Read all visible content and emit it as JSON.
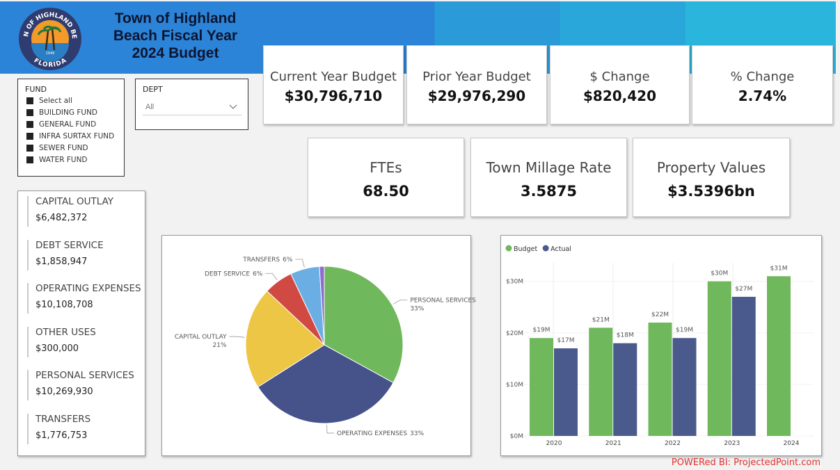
{
  "header": {
    "title_lines": [
      "Town of Highland",
      "Beach Fiscal Year",
      "2024 Budget"
    ],
    "logo": {
      "top": "TOWN OF HIGHLAND BEACH",
      "bottom": "FLORIDA",
      "year": "1949"
    }
  },
  "slicers": {
    "fund": {
      "label": "FUND",
      "items": [
        "Select all",
        "BUILDING FUND",
        "GENERAL FUND",
        "INFRA SURTAX FUND",
        "SEWER FUND",
        "WATER FUND"
      ]
    },
    "dept": {
      "label": "DEPT",
      "selected": "All"
    }
  },
  "kpis": [
    {
      "label": "Current Year Budget",
      "value": "$30,796,710"
    },
    {
      "label": "Prior Year Budget",
      "value": "$29,976,290"
    },
    {
      "label": "$ Change",
      "value": "$820,420"
    },
    {
      "label": "% Change",
      "value": "2.74%"
    },
    {
      "label": "FTEs",
      "value": "68.50"
    },
    {
      "label": "Town Millage Rate",
      "value": "3.5875"
    },
    {
      "label": "Property Values",
      "value": "$3.5396bn"
    }
  ],
  "expense_list": [
    {
      "name": "CAPITAL OUTLAY",
      "amount": "$6,482,372"
    },
    {
      "name": "DEBT SERVICE",
      "amount": "$1,858,947"
    },
    {
      "name": "OPERATING EXPENSES",
      "amount": "$10,108,708"
    },
    {
      "name": "OTHER USES",
      "amount": "$300,000"
    },
    {
      "name": "PERSONAL SERVICES",
      "amount": "$10,269,930"
    },
    {
      "name": "TRANSFERS",
      "amount": "$1,776,753"
    }
  ],
  "chart_data": [
    {
      "type": "pie",
      "categories": [
        "PERSONAL SERVICES",
        "OPERATING EXPENSES",
        "CAPITAL OUTLAY",
        "DEBT SERVICE",
        "TRANSFERS",
        null
      ],
      "values": [
        33,
        33,
        21,
        6,
        6,
        1
      ],
      "value_labels": [
        "33%",
        "33%",
        "21%",
        "6%",
        "6%",
        null
      ],
      "colors": [
        "#6fb85c",
        "#46538a",
        "#ecc644",
        "#d04a43",
        "#6aaee4",
        "#8e6bd1"
      ]
    },
    {
      "type": "bar",
      "categories": [
        "2020",
        "2021",
        "2022",
        "2023",
        "2024"
      ],
      "series": [
        {
          "name": "Budget",
          "color": "#6fb85c",
          "values": [
            19,
            21,
            22,
            30,
            31
          ],
          "value_labels": [
            "$19M",
            "$21M",
            "$22M",
            "$30M",
            "$31M"
          ]
        },
        {
          "name": "Actual",
          "color": "#4a5a8c",
          "values": [
            17,
            18,
            19,
            27,
            null
          ],
          "value_labels": [
            "$17M",
            "$18M",
            "$19M",
            "$27M",
            null
          ]
        }
      ],
      "ylim": [
        0,
        33.6
      ],
      "yticks": [
        {
          "value": 0,
          "label": "$0M"
        },
        {
          "value": 10,
          "label": "$10M"
        },
        {
          "value": 20,
          "label": "$20M"
        },
        {
          "value": 30,
          "label": "$30M"
        }
      ],
      "grid": true,
      "legend": "top-left"
    }
  ],
  "footer": "POWERed BI: ProjectedPoint.com"
}
